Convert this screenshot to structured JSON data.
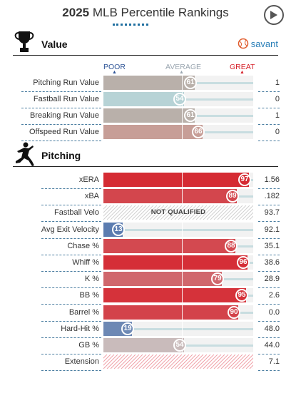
{
  "header": {
    "year": "2025",
    "title": "MLB Percentile Rankings"
  },
  "value_section": {
    "title": "Value",
    "logo_text": "savant"
  },
  "scale": {
    "poor": "POOR",
    "average": "AVERAGE",
    "great": "GREAT"
  },
  "value_rows": [
    {
      "label": "Pitching Run Value",
      "pct": 61,
      "value": "1"
    },
    {
      "label": "Fastball Run Value",
      "pct": 54,
      "value": "0"
    },
    {
      "label": "Breaking Run Value",
      "pct": 61,
      "value": "1"
    },
    {
      "label": "Offspeed Run Value",
      "pct": 66,
      "value": "0"
    }
  ],
  "pitching_section": {
    "title": "Pitching"
  },
  "pitching_rows": [
    {
      "label": "xERA",
      "pct": 97,
      "value": "1.56"
    },
    {
      "label": "xBA",
      "pct": 89,
      "value": ".182"
    },
    {
      "label": "Fastball Velo",
      "pct": null,
      "value": "93.7",
      "note": "NOT QUALIFIED"
    },
    {
      "label": "Avg Exit Velocity",
      "pct": 13,
      "value": "92.1"
    },
    {
      "label": "Chase %",
      "pct": 88,
      "value": "35.1"
    },
    {
      "label": "Whiff %",
      "pct": 96,
      "value": "38.6"
    },
    {
      "label": "K %",
      "pct": 79,
      "value": "28.9"
    },
    {
      "label": "BB %",
      "pct": 95,
      "value": "2.6"
    },
    {
      "label": "Barrel %",
      "pct": 90,
      "value": "0.0"
    },
    {
      "label": "Hard-Hit %",
      "pct": 19,
      "value": "48.0"
    },
    {
      "label": "GB %",
      "pct": 54,
      "value": "44.0"
    },
    {
      "label": "Extension",
      "pct": null,
      "value": "7.1"
    }
  ],
  "colors": {
    "poor": "#3561a8",
    "average_value": "#b9b0aa",
    "great": "#d6212a",
    "scale_label_poor": "#2f5597",
    "scale_label_avg": "#9aa6b0",
    "scale_label_great": "#d6212a"
  },
  "icons": {
    "play": "play-icon",
    "trophy": "trophy-icon",
    "pitcher": "pitcher-icon",
    "savant": "savant-ball-icon"
  }
}
